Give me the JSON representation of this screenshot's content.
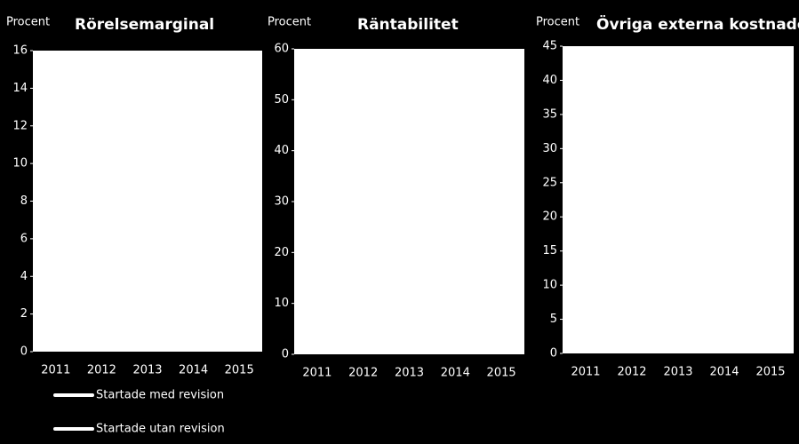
{
  "chart_data": [
    {
      "type": "line",
      "title": "Rörelsemarginal",
      "ylabel": "Procent",
      "categories": [
        "2011",
        "2012",
        "2013",
        "2014",
        "2015"
      ],
      "ylim": [
        0,
        16
      ],
      "yticks": [
        0,
        2,
        4,
        6,
        8,
        10,
        12,
        14,
        16
      ]
    },
    {
      "type": "line",
      "title": "Räntabilitet",
      "ylabel": "Procent",
      "categories": [
        "2011",
        "2012",
        "2013",
        "2014",
        "2015"
      ],
      "ylim": [
        0,
        60
      ],
      "yticks": [
        0,
        10,
        20,
        30,
        40,
        50,
        60
      ]
    },
    {
      "type": "line",
      "title": "Övriga externa kostnader",
      "ylabel": "Procent",
      "categories": [
        "2011",
        "2012",
        "2013",
        "2014",
        "2015"
      ],
      "ylim": [
        0,
        45
      ],
      "yticks": [
        0,
        5,
        10,
        15,
        20,
        25,
        30,
        35,
        40,
        45
      ]
    }
  ],
  "legend": [
    {
      "name": "Startade med revision",
      "color": "#ffffff"
    },
    {
      "name": "Startade utan revision",
      "color": "#ffffff"
    }
  ]
}
